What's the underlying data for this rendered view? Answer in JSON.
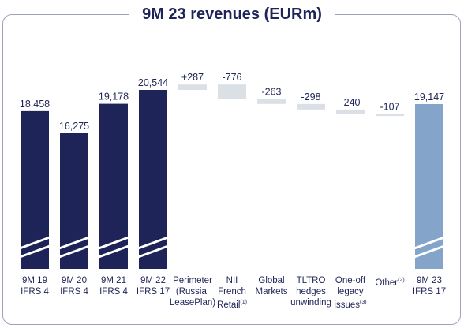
{
  "chart_data": {
    "type": "bar",
    "title": "9M 23 revenues (EURm)",
    "categories": [
      [
        "9M 19",
        "IFRS 4"
      ],
      [
        "9M 20",
        "IFRS 4"
      ],
      [
        "9M 21",
        "IFRS 4"
      ],
      [
        "9M 22",
        "IFRS 17"
      ],
      [
        "Perimeter",
        "(Russia,",
        "LeasePlan)"
      ],
      [
        "NII",
        "French",
        "Retail(1)"
      ],
      [
        "Global",
        "Markets"
      ],
      [
        "TLTRO",
        "hedges",
        "unwinding"
      ],
      [
        "One-off",
        "legacy",
        "issues(3)"
      ],
      [
        "Other(2)"
      ],
      [
        "9M 23",
        "IFRS 17"
      ]
    ],
    "bars": [
      {
        "kind": "total",
        "value": 18458,
        "label": "18,458"
      },
      {
        "kind": "total",
        "value": 16275,
        "label": "16,275"
      },
      {
        "kind": "total",
        "value": 19178,
        "label": "19,178"
      },
      {
        "kind": "total",
        "value": 20544,
        "label": "20,544"
      },
      {
        "kind": "delta",
        "value": 287,
        "label": "+287"
      },
      {
        "kind": "delta",
        "value": -776,
        "label": "-776"
      },
      {
        "kind": "delta",
        "value": -263,
        "label": "-263"
      },
      {
        "kind": "delta",
        "value": -298,
        "label": "-298"
      },
      {
        "kind": "delta",
        "value": -240,
        "label": "-240"
      },
      {
        "kind": "delta",
        "value": -107,
        "label": "-107"
      },
      {
        "kind": "total_highlight",
        "value": 19147,
        "label": "19,147"
      }
    ],
    "colors": {
      "total": "#1e2457",
      "total_highlight": "#84a5c9",
      "delta": "#dbe0e7",
      "text": "#1e2457",
      "frame": "#9aa3ba"
    },
    "axis_break": true
  }
}
